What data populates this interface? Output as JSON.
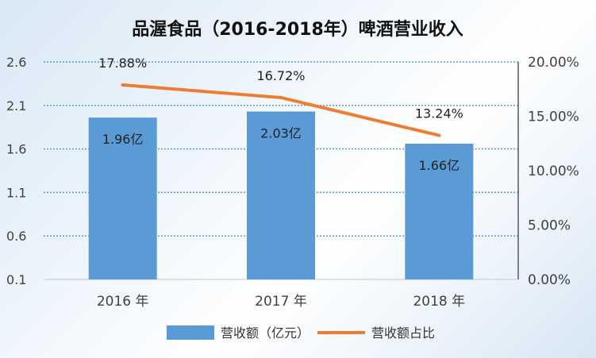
{
  "chart_data": {
    "type": "bar+line",
    "title": "品渥食品（2016-2018年）啤酒营业收入",
    "categories": [
      "2016 年",
      "2017 年",
      "2018 年"
    ],
    "series": [
      {
        "name": "营收额（亿元）",
        "kind": "bar",
        "axis": "left",
        "values": [
          1.96,
          2.03,
          1.66
        ],
        "labels": [
          "1.96亿",
          "2.03亿",
          "1.66亿"
        ],
        "color": "#5b9bd5"
      },
      {
        "name": "营收额占比",
        "kind": "line",
        "axis": "right",
        "values": [
          17.88,
          16.72,
          13.24
        ],
        "labels": [
          "17.88%",
          "16.72%",
          "13.24%"
        ],
        "color": "#ed7d31"
      }
    ],
    "y_left": {
      "min": 0.1,
      "max": 2.6,
      "ticks": [
        "0.1",
        "0.6",
        "1.1",
        "1.6",
        "2.1",
        "2.6"
      ]
    },
    "y_right": {
      "min": 0,
      "max": 20,
      "ticks": [
        "0.00%",
        "5.00%",
        "10.00%",
        "15.00%",
        "20.00%"
      ]
    },
    "legend_position": "bottom",
    "gridlines": "dotted"
  }
}
